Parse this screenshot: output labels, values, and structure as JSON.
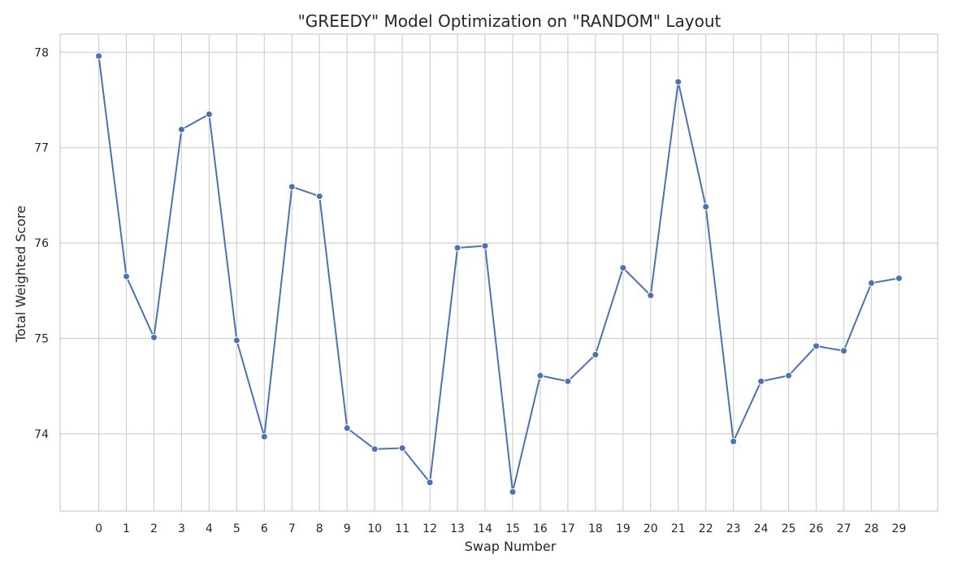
{
  "chart_data": {
    "type": "line",
    "title": "\"GREEDY\" Model Optimization on \"RANDOM\" Layout",
    "xlabel": "Swap Number",
    "ylabel": "Total Weighted Score",
    "x": [
      0,
      1,
      2,
      3,
      4,
      5,
      6,
      7,
      8,
      9,
      10,
      11,
      12,
      13,
      14,
      15,
      16,
      17,
      18,
      19,
      20,
      21,
      22,
      23,
      24,
      25,
      26,
      27,
      28,
      29
    ],
    "x_tick_labels": [
      "0",
      "1",
      "2",
      "3",
      "4",
      "5",
      "6",
      "7",
      "8",
      "9",
      "10",
      "11",
      "12",
      "13",
      "14",
      "15",
      "16",
      "17",
      "18",
      "19",
      "20",
      "21",
      "22",
      "23",
      "24",
      "25",
      "26",
      "27",
      "28",
      "29"
    ],
    "y_tick_labels": [
      "74",
      "75",
      "76",
      "77",
      "78"
    ],
    "y_ticks": [
      74,
      75,
      76,
      77,
      78
    ],
    "xlim": [
      -1.4,
      30.4
    ],
    "ylim": [
      73.19,
      78.19
    ],
    "series": [
      {
        "name": "",
        "values": [
          77.96,
          75.65,
          75.01,
          77.19,
          77.35,
          74.98,
          73.97,
          76.59,
          76.49,
          74.06,
          73.84,
          73.85,
          73.49,
          75.95,
          75.97,
          73.39,
          74.61,
          74.55,
          74.83,
          75.74,
          75.45,
          77.69,
          76.38,
          73.92,
          74.55,
          74.61,
          74.92,
          74.87,
          75.58,
          75.63
        ]
      }
    ],
    "grid": true,
    "legend": "none",
    "colors": {
      "line": "#4c72b0",
      "grid": "#d0d0d0",
      "spine": "#cccccc",
      "text": "#262626",
      "background": "#ffffff"
    }
  }
}
